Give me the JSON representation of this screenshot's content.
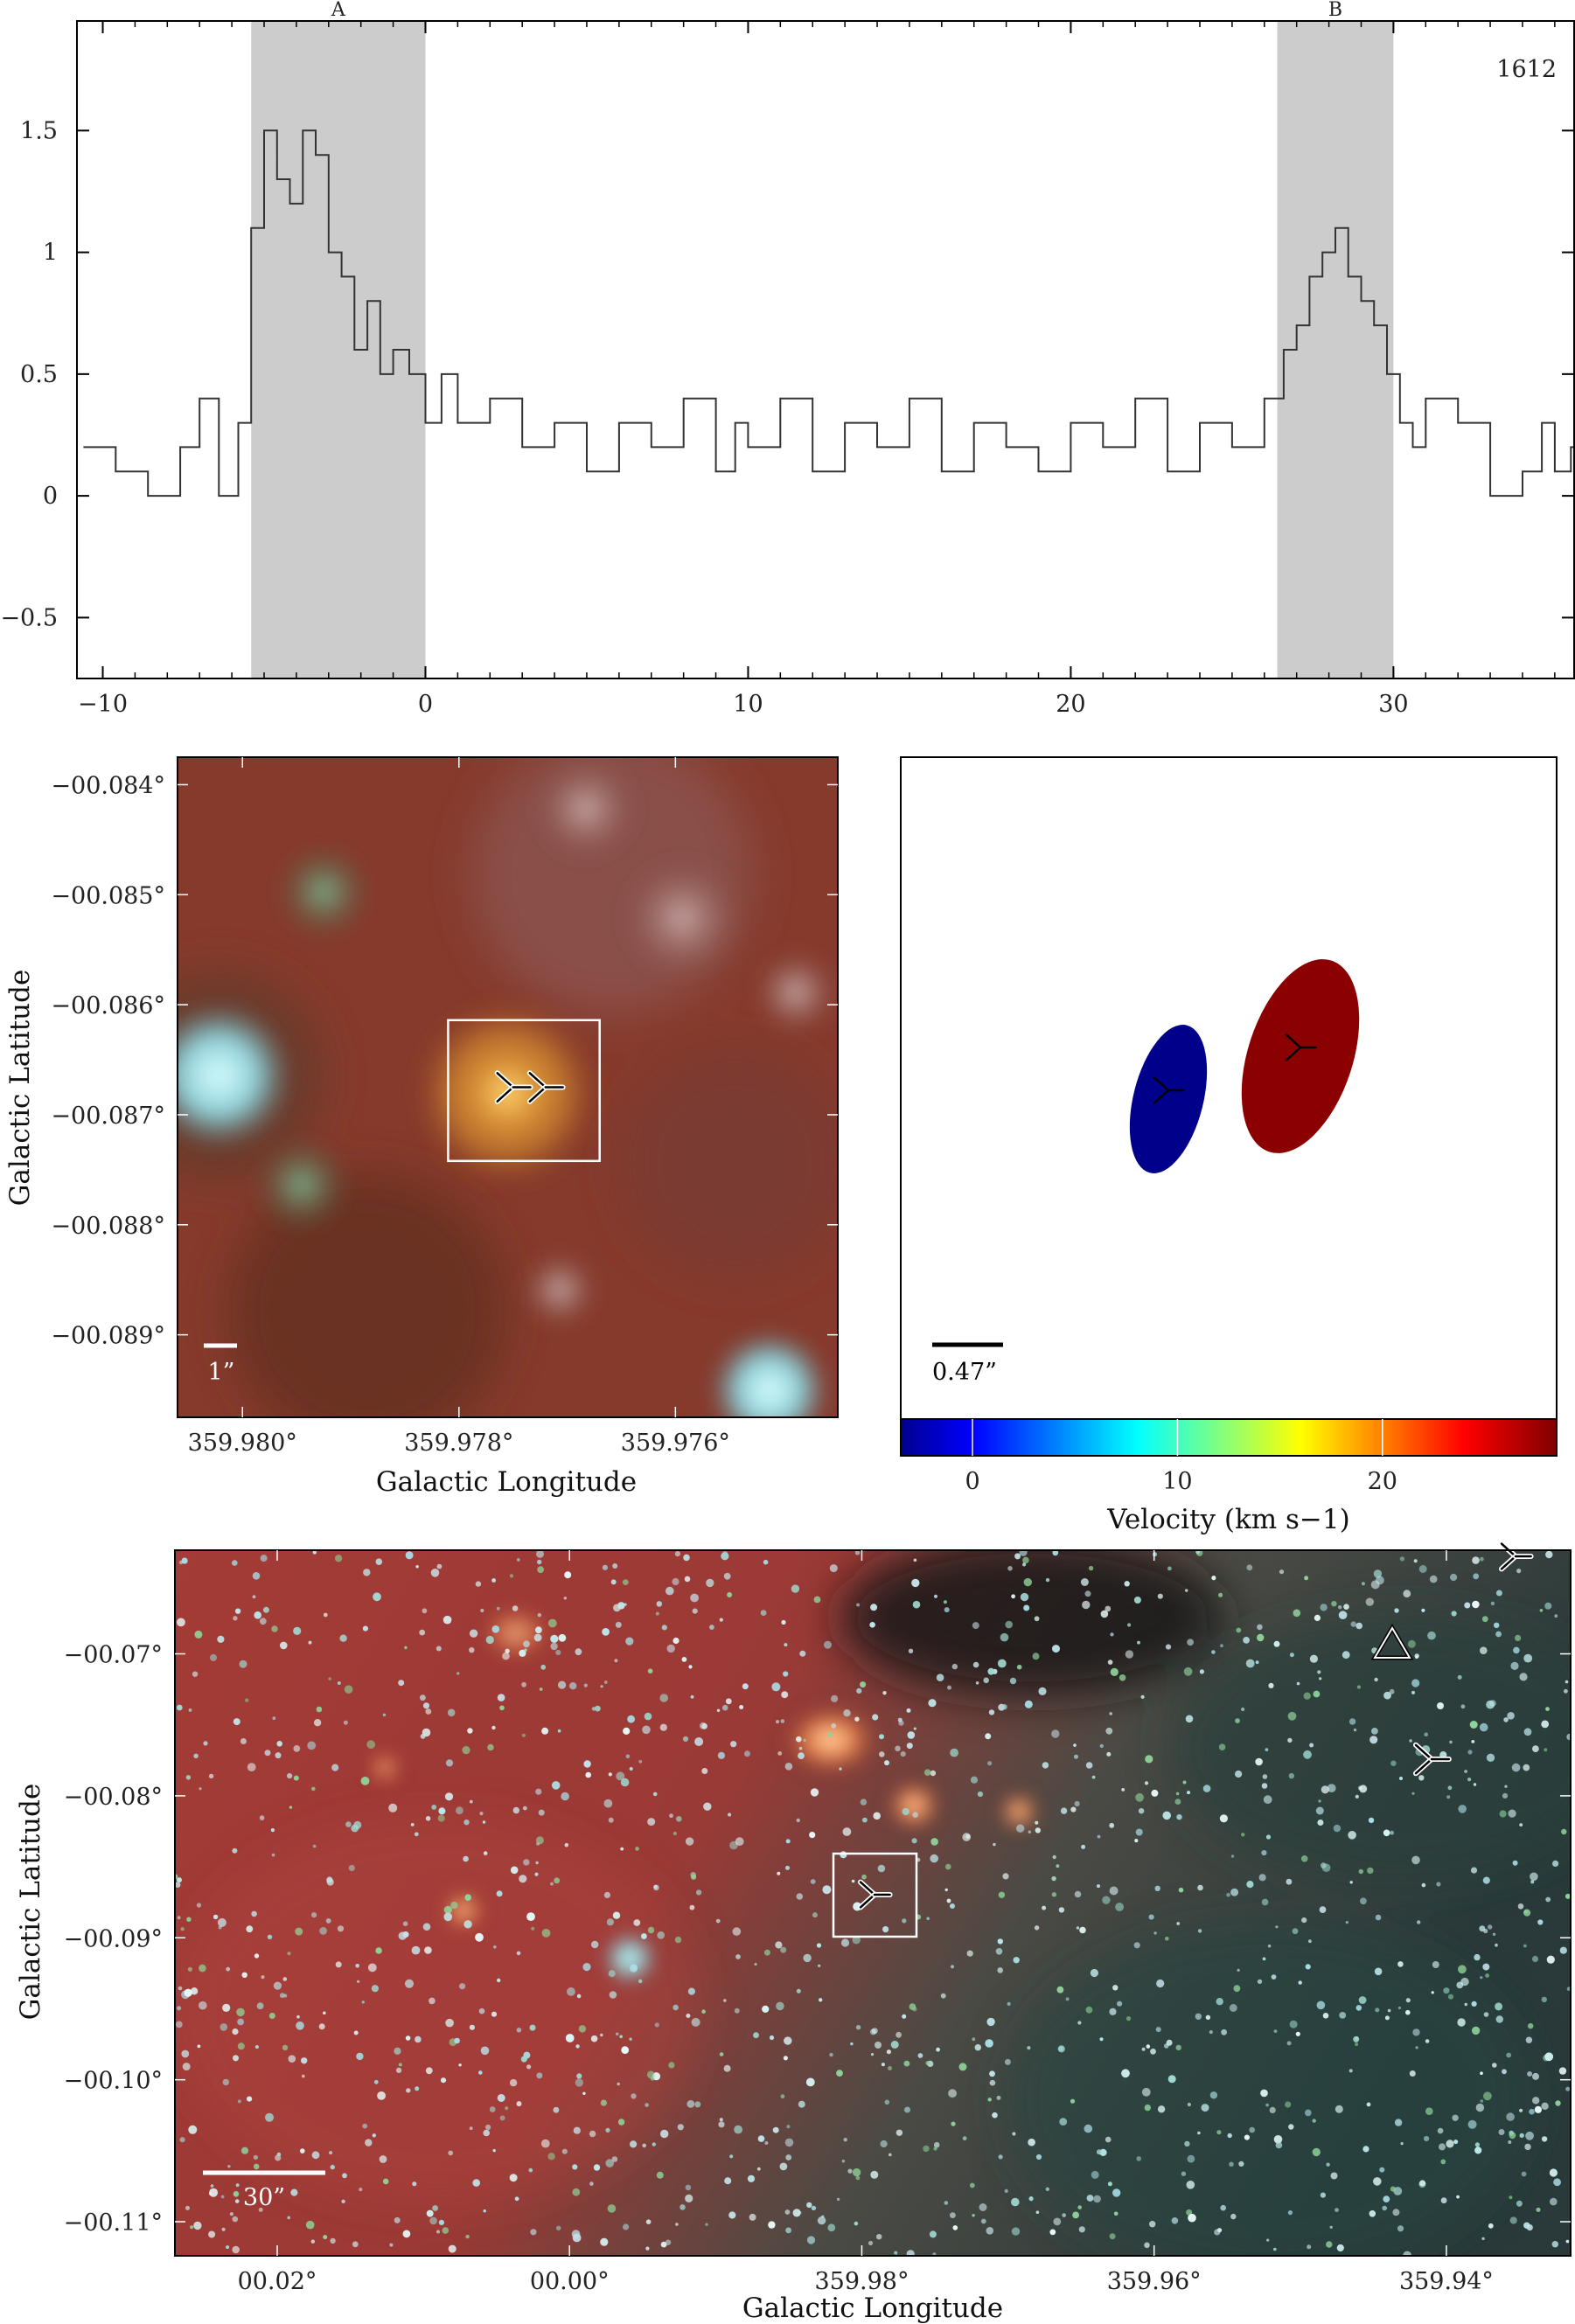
{
  "chart_data": [
    {
      "type": "line",
      "panel": "spectrum",
      "annotation": "1612",
      "xlim": [
        -10.8,
        35.6
      ],
      "ylim": [
        -0.75,
        1.95
      ],
      "xticks": [
        -10,
        0,
        10,
        20,
        30
      ],
      "xtick_labels": [
        "−10",
        "0",
        "10",
        "20",
        "30"
      ],
      "yticks": [
        -0.5,
        0,
        0.5,
        1,
        1.5
      ],
      "ytick_labels": [
        "−0.5",
        "0",
        "0.5",
        "1",
        "1.5"
      ],
      "shaded_regions": [
        {
          "label": "A",
          "x": [
            -5.4,
            0.0
          ]
        },
        {
          "label": "B",
          "x": [
            26.4,
            30.0
          ]
        }
      ],
      "series": [
        {
          "x": [
            -10.6,
            -9.6,
            -8.6,
            -7.6,
            -7.0,
            -6.4,
            -5.8,
            -5.4,
            -5.0,
            -4.6,
            -4.2,
            -3.8,
            -3.4,
            -3.0,
            -2.6,
            -2.2,
            -1.8,
            -1.4,
            -1.0,
            -0.5,
            0.0,
            0.5,
            1.0,
            2.0,
            3.0,
            4.0,
            5.0,
            6.0,
            7.0,
            8.0,
            9.0,
            9.6,
            10.0,
            11.0,
            12.0,
            13.0,
            14.0,
            15.0,
            16.0,
            17.0,
            18.0,
            19.0,
            20.0,
            21.0,
            22.0,
            23.0,
            24.0,
            25.0,
            26.0,
            26.6,
            27.0,
            27.4,
            27.8,
            28.2,
            28.6,
            29.0,
            29.4,
            29.8,
            30.2,
            30.6,
            31.0,
            32.0,
            33.0,
            34.0,
            34.6,
            35.0,
            35.5
          ],
          "values": [
            0.2,
            0.1,
            0.0,
            0.2,
            0.4,
            0.0,
            0.3,
            1.1,
            1.5,
            1.3,
            1.2,
            1.5,
            1.4,
            1.0,
            0.9,
            0.6,
            0.8,
            0.5,
            0.6,
            0.5,
            0.3,
            0.5,
            0.3,
            0.4,
            0.2,
            0.3,
            0.1,
            0.3,
            0.2,
            0.4,
            0.1,
            0.3,
            0.2,
            0.4,
            0.1,
            0.3,
            0.2,
            0.4,
            0.1,
            0.3,
            0.2,
            0.1,
            0.3,
            0.2,
            0.4,
            0.1,
            0.3,
            0.2,
            0.4,
            0.6,
            0.7,
            0.9,
            1.0,
            1.1,
            0.9,
            0.8,
            0.7,
            0.5,
            0.3,
            0.2,
            0.4,
            0.3,
            0.0,
            0.1,
            0.3,
            0.1,
            0.2
          ]
        }
      ]
    },
    {
      "type": "heatmap",
      "panel": "zoom-image",
      "xlabel": "Galactic Longitude",
      "ylabel": "Galactic Latitude",
      "xlim": [
        359.9806,
        359.9745
      ],
      "ylim": [
        -0.08975,
        -0.08375
      ],
      "xtick_labels": [
        "359.980°",
        "359.978°",
        "359.976°"
      ],
      "ytick_labels": [
        "−00.084°",
        "−00.085°",
        "−00.086°",
        "−00.087°",
        "−00.088°",
        "−00.089°"
      ],
      "scale_bar": "1”",
      "box": {
        "x": [
          359.9781,
          359.9767
        ],
        "y": [
          -0.08614,
          -0.08742
        ]
      },
      "markers": [
        {
          "x": 359.9775,
          "y": -0.08675
        },
        {
          "x": 359.9772,
          "y": -0.08675
        }
      ]
    },
    {
      "type": "scatter",
      "panel": "maser-spots",
      "scale_bar": "0.47”",
      "colorbar": {
        "label": "Velocity (km s−1)",
        "range": [
          -3.5,
          28.5
        ],
        "ticks": [
          0,
          10,
          20
        ],
        "tick_labels": [
          "0",
          "10",
          "20"
        ]
      },
      "spots": [
        {
          "velocity": -2.0,
          "color": "#00008b"
        },
        {
          "velocity": 28.0,
          "color": "#8b0000"
        }
      ]
    },
    {
      "type": "heatmap",
      "panel": "wide-image",
      "xlabel": "Galactic Longitude",
      "ylabel": "Galactic Latitude",
      "xlim": [
        0.027,
        -0.0685
      ],
      "ylim": [
        -0.1124,
        -0.0627
      ],
      "xtick_labels": [
        "00.02°",
        "00.00°",
        "359.98°",
        "359.96°",
        "359.94°"
      ],
      "ytick_labels": [
        "−00.07°",
        "−00.08°",
        "−00.09°",
        "−00.10°",
        "−00.11°"
      ],
      "scale_bar": "30”"
    }
  ]
}
